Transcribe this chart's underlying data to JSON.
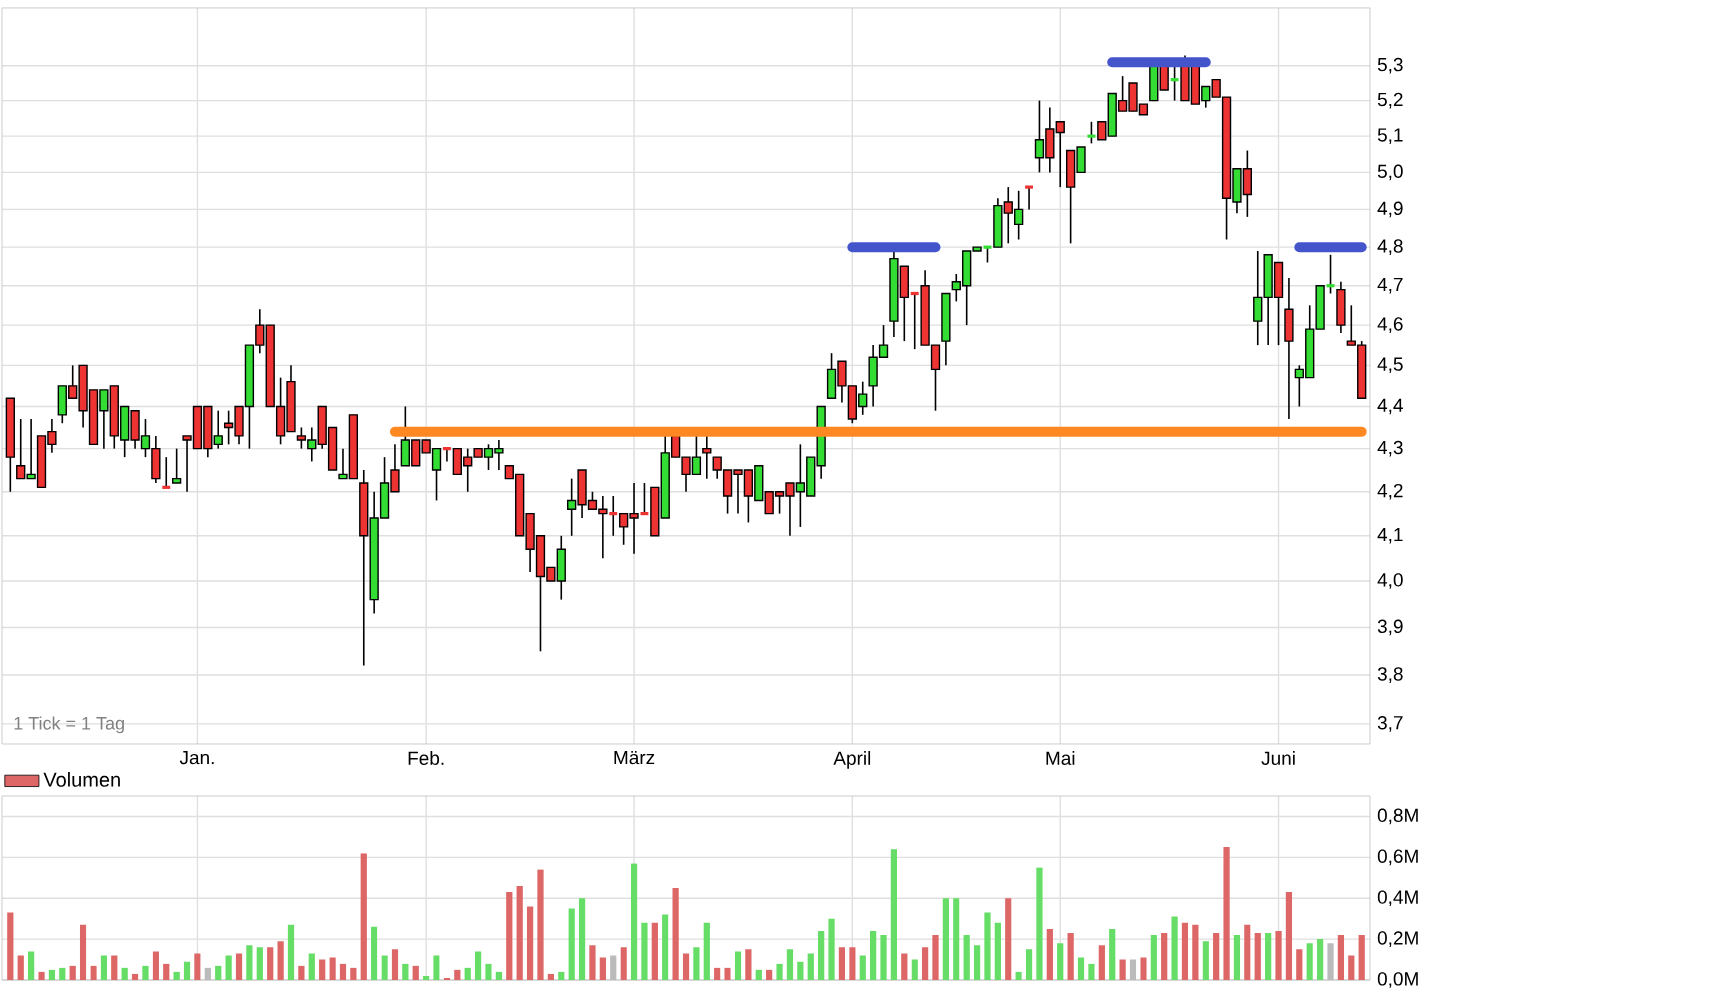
{
  "chart_data": [
    {
      "type": "candlestick",
      "categories": [
        null,
        null,
        null,
        null,
        null,
        null,
        null,
        null,
        null,
        null,
        null,
        null,
        null,
        null,
        null,
        null,
        null,
        null,
        "Jan.",
        null,
        null,
        null,
        null,
        null,
        null,
        null,
        null,
        null,
        null,
        null,
        null,
        null,
        null,
        null,
        null,
        null,
        null,
        null,
        null,
        null,
        "Feb.",
        null,
        null,
        null,
        null,
        null,
        null,
        null,
        null,
        null,
        null,
        null,
        null,
        null,
        null,
        null,
        null,
        null,
        null,
        null,
        "März",
        null,
        null,
        null,
        null,
        null,
        null,
        null,
        null,
        null,
        null,
        null,
        null,
        null,
        null,
        null,
        null,
        null,
        null,
        null,
        null,
        "April",
        null,
        null,
        null,
        null,
        null,
        null,
        null,
        null,
        null,
        null,
        null,
        null,
        null,
        null,
        null,
        null,
        null,
        null,
        null,
        "Mai",
        null,
        null,
        null,
        null,
        null,
        null,
        null,
        null,
        null,
        null,
        null,
        null,
        null,
        null,
        null,
        null,
        null,
        null,
        null,
        null,
        "Juni",
        null,
        null,
        null,
        null,
        null,
        null,
        null,
        null
      ],
      "ohlc": [
        [
          4.42,
          4.42,
          4.2,
          4.28
        ],
        [
          4.26,
          4.37,
          4.23,
          4.23
        ],
        [
          4.23,
          4.37,
          4.23,
          4.24
        ],
        [
          4.33,
          4.33,
          4.21,
          4.21
        ],
        [
          4.34,
          4.37,
          4.29,
          4.31
        ],
        [
          4.38,
          4.45,
          4.36,
          4.45
        ],
        [
          4.45,
          4.5,
          4.42,
          4.42
        ],
        [
          4.5,
          4.5,
          4.35,
          4.39
        ],
        [
          4.44,
          4.44,
          4.31,
          4.31
        ],
        [
          4.39,
          4.44,
          4.3,
          4.44
        ],
        [
          4.45,
          4.45,
          4.3,
          4.33
        ],
        [
          4.32,
          4.4,
          4.28,
          4.4
        ],
        [
          4.39,
          4.39,
          4.3,
          4.32
        ],
        [
          4.3,
          4.37,
          4.28,
          4.33
        ],
        [
          4.3,
          4.33,
          4.22,
          4.23
        ],
        [
          4.21,
          4.28,
          4.21,
          4.21
        ],
        [
          4.22,
          4.3,
          4.22,
          4.23
        ],
        [
          4.33,
          4.33,
          4.2,
          4.32
        ],
        [
          4.4,
          4.4,
          4.3,
          4.3
        ],
        [
          4.4,
          4.4,
          4.28,
          4.3
        ],
        [
          4.31,
          4.39,
          4.3,
          4.33
        ],
        [
          4.36,
          4.39,
          4.31,
          4.35
        ],
        [
          4.4,
          4.4,
          4.31,
          4.33
        ],
        [
          4.4,
          4.55,
          4.3,
          4.55
        ],
        [
          4.6,
          4.64,
          4.53,
          4.55
        ],
        [
          4.6,
          4.6,
          4.4,
          4.4
        ],
        [
          4.4,
          4.47,
          4.31,
          4.33
        ],
        [
          4.46,
          4.5,
          4.34,
          4.34
        ],
        [
          4.33,
          4.35,
          4.3,
          4.32
        ],
        [
          4.3,
          4.35,
          4.27,
          4.32
        ],
        [
          4.4,
          4.4,
          4.3,
          4.31
        ],
        [
          4.35,
          4.35,
          4.25,
          4.25
        ],
        [
          4.23,
          4.3,
          4.23,
          4.24
        ],
        [
          4.38,
          4.38,
          4.23,
          4.23
        ],
        [
          4.22,
          4.25,
          3.82,
          4.1
        ],
        [
          3.96,
          4.2,
          3.93,
          4.14
        ],
        [
          4.14,
          4.28,
          4.14,
          4.22
        ],
        [
          4.25,
          4.31,
          4.2,
          4.2
        ],
        [
          4.26,
          4.4,
          4.26,
          4.32
        ],
        [
          4.32,
          4.32,
          4.26,
          4.26
        ],
        [
          4.32,
          4.32,
          4.29,
          4.29
        ],
        [
          4.25,
          4.3,
          4.18,
          4.3
        ],
        [
          4.3,
          4.3,
          4.27,
          4.3
        ],
        [
          4.3,
          4.3,
          4.24,
          4.24
        ],
        [
          4.28,
          4.3,
          4.2,
          4.26
        ],
        [
          4.3,
          4.3,
          4.28,
          4.28
        ],
        [
          4.28,
          4.31,
          4.25,
          4.3
        ],
        [
          4.29,
          4.32,
          4.25,
          4.3
        ],
        [
          4.26,
          4.26,
          4.23,
          4.23
        ],
        [
          4.24,
          4.24,
          4.1,
          4.1
        ],
        [
          4.15,
          4.15,
          4.02,
          4.07
        ],
        [
          4.1,
          4.1,
          3.85,
          4.01
        ],
        [
          4.03,
          4.03,
          4.0,
          4.0
        ],
        [
          4.0,
          4.1,
          3.96,
          4.07
        ],
        [
          4.16,
          4.23,
          4.1,
          4.18
        ],
        [
          4.25,
          4.25,
          4.14,
          4.17
        ],
        [
          4.18,
          4.2,
          4.16,
          4.16
        ],
        [
          4.16,
          4.19,
          4.05,
          4.15
        ],
        [
          4.15,
          4.19,
          4.1,
          4.15
        ],
        [
          4.15,
          4.15,
          4.08,
          4.12
        ],
        [
          4.15,
          4.22,
          4.06,
          4.14
        ],
        [
          4.15,
          4.22,
          4.15,
          4.15
        ],
        [
          4.21,
          4.21,
          4.1,
          4.1
        ],
        [
          4.14,
          4.33,
          4.14,
          4.29
        ],
        [
          4.33,
          4.33,
          4.28,
          4.28
        ],
        [
          4.28,
          4.28,
          4.2,
          4.24
        ],
        [
          4.24,
          4.33,
          4.24,
          4.28
        ],
        [
          4.3,
          4.33,
          4.23,
          4.29
        ],
        [
          4.28,
          4.28,
          4.23,
          4.25
        ],
        [
          4.25,
          4.25,
          4.15,
          4.19
        ],
        [
          4.25,
          4.25,
          4.15,
          4.24
        ],
        [
          4.25,
          4.25,
          4.13,
          4.19
        ],
        [
          4.18,
          4.26,
          4.18,
          4.26
        ],
        [
          4.2,
          4.2,
          4.15,
          4.15
        ],
        [
          4.2,
          4.2,
          4.15,
          4.19
        ],
        [
          4.22,
          4.22,
          4.1,
          4.19
        ],
        [
          4.2,
          4.31,
          4.12,
          4.22
        ],
        [
          4.19,
          4.28,
          4.19,
          4.28
        ],
        [
          4.26,
          4.4,
          4.23,
          4.4
        ],
        [
          4.42,
          4.53,
          4.42,
          4.49
        ],
        [
          4.51,
          4.51,
          4.41,
          4.45
        ],
        [
          4.45,
          4.45,
          4.36,
          4.37
        ],
        [
          4.4,
          4.46,
          4.38,
          4.43
        ],
        [
          4.45,
          4.55,
          4.4,
          4.52
        ],
        [
          4.52,
          4.6,
          4.52,
          4.55
        ],
        [
          4.61,
          4.8,
          4.57,
          4.77
        ],
        [
          4.75,
          4.75,
          4.56,
          4.67
        ],
        [
          4.68,
          4.68,
          4.54,
          4.68
        ],
        [
          4.7,
          4.74,
          4.55,
          4.55
        ],
        [
          4.55,
          4.55,
          4.39,
          4.49
        ],
        [
          4.56,
          4.68,
          4.5,
          4.68
        ],
        [
          4.69,
          4.73,
          4.66,
          4.71
        ],
        [
          4.7,
          4.79,
          4.6,
          4.79
        ],
        [
          4.79,
          4.8,
          4.79,
          4.8
        ],
        [
          4.8,
          4.8,
          4.76,
          4.8
        ],
        [
          4.8,
          4.93,
          4.8,
          4.91
        ],
        [
          4.92,
          4.96,
          4.81,
          4.89
        ],
        [
          4.86,
          4.95,
          4.82,
          4.9
        ],
        [
          4.96,
          4.96,
          4.9,
          4.96
        ],
        [
          5.04,
          5.2,
          5.0,
          5.09
        ],
        [
          5.12,
          5.18,
          5.0,
          5.04
        ],
        [
          5.14,
          5.14,
          4.96,
          5.11
        ],
        [
          5.06,
          5.06,
          4.81,
          4.96
        ],
        [
          5.0,
          5.07,
          5.0,
          5.07
        ],
        [
          5.1,
          5.14,
          5.08,
          5.1
        ],
        [
          5.14,
          5.14,
          5.09,
          5.09
        ],
        [
          5.1,
          5.22,
          5.1,
          5.22
        ],
        [
          5.2,
          5.27,
          5.17,
          5.17
        ],
        [
          5.25,
          5.25,
          5.17,
          5.17
        ],
        [
          5.19,
          5.19,
          5.16,
          5.16
        ],
        [
          5.2,
          5.3,
          5.2,
          5.3
        ],
        [
          5.3,
          5.3,
          5.23,
          5.23
        ],
        [
          5.26,
          5.3,
          5.2,
          5.26
        ],
        [
          5.3,
          5.33,
          5.2,
          5.2
        ],
        [
          5.3,
          5.3,
          5.19,
          5.19
        ],
        [
          5.2,
          5.24,
          5.18,
          5.24
        ],
        [
          5.26,
          5.26,
          5.21,
          5.21
        ],
        [
          5.21,
          5.21,
          4.82,
          4.93
        ],
        [
          4.92,
          5.01,
          4.89,
          5.01
        ],
        [
          5.01,
          5.06,
          4.88,
          4.94
        ],
        [
          4.61,
          4.79,
          4.55,
          4.67
        ],
        [
          4.67,
          4.78,
          4.55,
          4.78
        ],
        [
          4.76,
          4.76,
          4.55,
          4.67
        ],
        [
          4.64,
          4.72,
          4.37,
          4.56
        ],
        [
          4.47,
          4.5,
          4.4,
          4.49
        ],
        [
          4.47,
          4.65,
          4.47,
          4.59
        ],
        [
          4.59,
          4.7,
          4.59,
          4.7
        ],
        [
          4.7,
          4.78,
          4.68,
          4.7
        ],
        [
          4.69,
          4.71,
          4.58,
          4.6
        ],
        [
          4.56,
          4.65,
          4.55,
          4.55
        ],
        [
          4.55,
          4.56,
          4.42,
          4.42
        ]
      ],
      "colors": [
        "#ee3333",
        "#ee3333",
        "#33dd33",
        "#ee3333",
        "#ee3333",
        "#33dd33",
        "#ee3333",
        "#ee3333",
        "#ee3333",
        "#33dd33",
        "#ee3333",
        "#33dd33",
        "#ee3333",
        "#33dd33",
        "#ee3333",
        "#ee3333",
        "#33dd33",
        "#ee3333",
        "#ee3333",
        "#ee3333",
        "#33dd33",
        "#ee3333",
        "#ee3333",
        "#33dd33",
        "#ee3333",
        "#ee3333",
        "#ee3333",
        "#ee3333",
        "#ee3333",
        "#33dd33",
        "#ee3333",
        "#ee3333",
        "#33dd33",
        "#ee3333",
        "#ee3333",
        "#33dd33",
        "#33dd33",
        "#ee3333",
        "#33dd33",
        "#ee3333",
        "#ee3333",
        "#33dd33",
        "#ee3333",
        "#ee3333",
        "#ee3333",
        "#ee3333",
        "#33dd33",
        "#33dd33",
        "#ee3333",
        "#ee3333",
        "#ee3333",
        "#ee3333",
        "#ee3333",
        "#33dd33",
        "#33dd33",
        "#ee3333",
        "#ee3333",
        "#ee3333",
        "#ee3333",
        "#ee3333",
        "#ee3333",
        "#ee3333",
        "#ee3333",
        "#33dd33",
        "#ee3333",
        "#ee3333",
        "#33dd33",
        "#ee3333",
        "#ee3333",
        "#ee3333",
        "#ee3333",
        "#ee3333",
        "#33dd33",
        "#ee3333",
        "#ee3333",
        "#ee3333",
        "#33dd33",
        "#33dd33",
        "#33dd33",
        "#33dd33",
        "#ee3333",
        "#ee3333",
        "#33dd33",
        "#33dd33",
        "#33dd33",
        "#33dd33",
        "#ee3333",
        "#ee3333",
        "#ee3333",
        "#ee3333",
        "#33dd33",
        "#33dd33",
        "#33dd33",
        "#33dd33",
        "#33dd33",
        "#33dd33",
        "#ee3333",
        "#33dd33",
        "#ee3333",
        "#33dd33",
        "#ee3333",
        "#ee3333",
        "#ee3333",
        "#33dd33",
        "#33dd33",
        "#ee3333",
        "#33dd33",
        "#ee3333",
        "#ee3333",
        "#ee3333",
        "#33dd33",
        "#ee3333",
        "#33dd33",
        "#ee3333",
        "#ee3333",
        "#33dd33",
        "#ee3333",
        "#ee3333",
        "#33dd33",
        "#ee3333",
        "#33dd33",
        "#33dd33",
        "#ee3333",
        "#ee3333",
        "#33dd33",
        "#33dd33",
        "#33dd33",
        "#33dd33",
        "#ee3333",
        "#ee3333",
        "#ee3333"
      ],
      "series": [
        {
          "type": "line",
          "color": "#4455cc",
          "values": [
            null,
            null,
            null,
            null,
            null,
            null,
            null,
            null,
            null,
            null,
            null,
            null,
            null,
            null,
            null,
            null,
            null,
            null,
            null,
            null,
            null,
            null,
            null,
            null,
            null,
            null,
            null,
            null,
            null,
            null,
            null,
            null,
            null,
            null,
            null,
            null,
            null,
            null,
            null,
            null,
            null,
            null,
            null,
            null,
            null,
            null,
            null,
            null,
            null,
            null,
            null,
            null,
            null,
            null,
            null,
            null,
            null,
            null,
            null,
            null,
            null,
            null,
            null,
            null,
            null,
            null,
            null,
            null,
            null,
            null,
            null,
            null,
            null,
            null,
            null,
            null,
            null,
            null,
            null,
            null,
            null,
            4.8,
            4.8,
            4.8,
            4.8,
            4.8,
            4.8,
            4.8,
            4.8,
            4.8,
            null,
            null,
            null,
            null,
            null,
            null,
            null,
            null,
            null,
            null,
            null,
            null,
            null,
            null,
            null,
            null,
            5.31,
            5.31,
            5.31,
            5.31,
            5.31,
            5.31,
            5.31,
            5.31,
            5.31,
            5.31,
            null,
            null,
            null,
            null,
            null,
            null,
            null,
            null,
            4.8,
            4.8,
            4.8,
            4.8,
            4.8,
            4.8,
            4.8
          ]
        },
        {
          "type": "line",
          "color": "#ff8822",
          "values": [
            null,
            null,
            null,
            null,
            null,
            null,
            null,
            null,
            null,
            null,
            null,
            null,
            null,
            null,
            null,
            null,
            null,
            null,
            null,
            null,
            null,
            null,
            null,
            null,
            null,
            null,
            null,
            null,
            null,
            null,
            null,
            null,
            null,
            null,
            null,
            null,
            null,
            4.34,
            4.34,
            4.34,
            4.34,
            4.34,
            4.34,
            4.34,
            4.34,
            4.34,
            4.34,
            4.34,
            4.34,
            4.34,
            4.34,
            4.34,
            4.34,
            4.34,
            4.34,
            4.34,
            4.34,
            4.34,
            4.34,
            4.34,
            4.34,
            4.34,
            4.34,
            4.34,
            4.34,
            4.34,
            4.34,
            4.34,
            4.34,
            4.34,
            4.34,
            4.34,
            4.34,
            4.34,
            4.34,
            4.34,
            4.34,
            4.34,
            4.34,
            4.34,
            4.34,
            4.34,
            4.34,
            4.34,
            4.34,
            4.34,
            4.34,
            4.34,
            4.34,
            4.34,
            4.34,
            4.34,
            4.34,
            4.34,
            4.34,
            4.34,
            4.34,
            4.34,
            4.34,
            4.34,
            4.34,
            4.34,
            4.34,
            4.34,
            4.34,
            4.34,
            4.34,
            4.34,
            4.34,
            4.34,
            4.34,
            4.34,
            4.34,
            4.34,
            4.34,
            4.34,
            4.34,
            4.34,
            4.34,
            4.34,
            4.34,
            4.34,
            4.34,
            4.34,
            4.34,
            4.34,
            4.34,
            4.34,
            4.34,
            4.34,
            4.34
          ]
        }
      ],
      "log": true,
      "ylim": [
        3.66,
        5.47
      ],
      "yticks": [
        {
          "value": 3.7,
          "label": "3,7"
        },
        {
          "value": 3.8,
          "label": "3,8"
        },
        {
          "value": 3.9,
          "label": "3,9"
        },
        {
          "value": 4.0,
          "label": "4,0"
        },
        {
          "value": 4.1,
          "label": "4,1"
        },
        {
          "value": 4.2,
          "label": "4,2"
        },
        {
          "value": 4.3,
          "label": "4,3"
        },
        {
          "value": 4.4,
          "label": "4,4"
        },
        {
          "value": 4.5,
          "label": "4,5"
        },
        {
          "value": 4.6,
          "label": "4,6"
        },
        {
          "value": 4.7,
          "label": "4,7"
        },
        {
          "value": 4.8,
          "label": "4,8"
        },
        {
          "value": 4.9,
          "label": "4,9"
        },
        {
          "value": 5.0,
          "label": "5,0"
        },
        {
          "value": 5.1,
          "label": "5,1"
        },
        {
          "value": 5.2,
          "label": "5,2"
        },
        {
          "value": 5.3,
          "label": "5,3"
        }
      ],
      "grid": true,
      "annotations": [
        "1 Tick = 1 Tag"
      ]
    },
    {
      "type": "bar",
      "categories": [
        null,
        null,
        null,
        null,
        null,
        null,
        null,
        null,
        null,
        null,
        null,
        null,
        null,
        null,
        null,
        null,
        null,
        null,
        null,
        null,
        null,
        null,
        null,
        null,
        null,
        null,
        null,
        null,
        null,
        null,
        null,
        null,
        null,
        null,
        null,
        null,
        null,
        null,
        null,
        null,
        null,
        null,
        null,
        null,
        null,
        null,
        null,
        null,
        null,
        null,
        null,
        null,
        null,
        null,
        null,
        null,
        null,
        null,
        null,
        null,
        null,
        null,
        null,
        null,
        null,
        null,
        null,
        null,
        null,
        null,
        null,
        null,
        null,
        null,
        null,
        null,
        null,
        null,
        null,
        null,
        null,
        null,
        null,
        null,
        null,
        null,
        null,
        null,
        null,
        null,
        null,
        null,
        null,
        null,
        null,
        null,
        null,
        null,
        null,
        null,
        null,
        null,
        null,
        null,
        null,
        null,
        null,
        null,
        null,
        null,
        null,
        null,
        null,
        null,
        null,
        null,
        null,
        null,
        null,
        null,
        null,
        null,
        null,
        null,
        null,
        null,
        null,
        null,
        null,
        null,
        null
      ],
      "series": [
        {
          "name": "Volumen",
          "color": "#dd6666",
          "colors": [
            "#dd6666",
            "#dd6666",
            "#66dd66",
            "#dd6666",
            "#66dd66",
            "#66dd66",
            "#dd6666",
            "#dd6666",
            "#dd6666",
            "#66dd66",
            "#dd6666",
            "#66dd66",
            "#dd6666",
            "#66dd66",
            "#dd6666",
            "#dd6666",
            "#66dd66",
            "#66dd66",
            "#dd6666",
            "#bbbbbb",
            "#66dd66",
            "#66dd66",
            "#dd6666",
            "#66dd66",
            "#66dd66",
            "#dd6666",
            "#dd6666",
            "#66dd66",
            "#dd6666",
            "#66dd66",
            "#dd6666",
            "#dd6666",
            "#dd6666",
            "#dd6666",
            "#dd6666",
            "#66dd66",
            "#66dd66",
            "#dd6666",
            "#66dd66",
            "#dd6666",
            "#66dd66",
            "#66dd66",
            "#dd6666",
            "#dd6666",
            "#66dd66",
            "#66dd66",
            "#66dd66",
            "#66dd66",
            "#dd6666",
            "#dd6666",
            "#dd6666",
            "#dd6666",
            "#dd6666",
            "#66dd66",
            "#66dd66",
            "#66dd66",
            "#dd6666",
            "#dd6666",
            "#bbbbbb",
            "#dd6666",
            "#66dd66",
            "#66dd66",
            "#dd6666",
            "#66dd66",
            "#dd6666",
            "#dd6666",
            "#66dd66",
            "#66dd66",
            "#dd6666",
            "#dd6666",
            "#66dd66",
            "#dd6666",
            "#66dd66",
            "#dd6666",
            "#66dd66",
            "#66dd66",
            "#66dd66",
            "#66dd66",
            "#66dd66",
            "#66dd66",
            "#dd6666",
            "#dd6666",
            "#66dd66",
            "#66dd66",
            "#66dd66",
            "#66dd66",
            "#dd6666",
            "#66dd66",
            "#dd6666",
            "#dd6666",
            "#66dd66",
            "#66dd66",
            "#66dd66",
            "#66dd66",
            "#66dd66",
            "#66dd66",
            "#dd6666",
            "#66dd66",
            "#66dd66",
            "#66dd66",
            "#dd6666",
            "#66dd66",
            "#dd6666",
            "#66dd66",
            "#66dd66",
            "#dd6666",
            "#66dd66",
            "#dd6666",
            "#bbbbbb",
            "#dd6666",
            "#66dd66",
            "#dd6666",
            "#66dd66",
            "#dd6666",
            "#dd6666",
            "#66dd66",
            "#dd6666",
            "#dd6666",
            "#66dd66",
            "#dd6666",
            "#dd6666",
            "#66dd66",
            "#dd6666",
            "#dd6666",
            "#dd6666",
            "#66dd66",
            "#66dd66",
            "#bbbbbb",
            "#dd6666",
            "#dd6666",
            "#dd6666"
          ],
          "values": [
            0.33,
            0.12,
            0.14,
            0.04,
            0.05,
            0.06,
            0.07,
            0.27,
            0.07,
            0.12,
            0.12,
            0.06,
            0.03,
            0.07,
            0.14,
            0.08,
            0.04,
            0.09,
            0.13,
            0.06,
            0.07,
            0.12,
            0.13,
            0.17,
            0.16,
            0.16,
            0.19,
            0.27,
            0.07,
            0.13,
            0.1,
            0.11,
            0.08,
            0.06,
            0.62,
            0.26,
            0.12,
            0.15,
            0.08,
            0.07,
            0.02,
            0.12,
            0.01,
            0.05,
            0.06,
            0.14,
            0.08,
            0.04,
            0.43,
            0.46,
            0.36,
            0.54,
            0.03,
            0.04,
            0.35,
            0.4,
            0.17,
            0.11,
            0.12,
            0.16,
            0.57,
            0.28,
            0.28,
            0.32,
            0.45,
            0.13,
            0.16,
            0.28,
            0.06,
            0.06,
            0.14,
            0.15,
            0.05,
            0.05,
            0.08,
            0.15,
            0.09,
            0.13,
            0.24,
            0.3,
            0.16,
            0.16,
            0.12,
            0.24,
            0.22,
            0.64,
            0.13,
            0.1,
            0.16,
            0.22,
            0.4,
            0.4,
            0.22,
            0.17,
            0.33,
            0.28,
            0.4,
            0.04,
            0.15,
            0.55,
            0.25,
            0.18,
            0.23,
            0.11,
            0.08,
            0.17,
            0.25,
            0.1,
            0.1,
            0.11,
            0.22,
            0.23,
            0.31,
            0.28,
            0.27,
            0.19,
            0.23,
            0.65,
            0.22,
            0.27,
            0.23,
            0.23,
            0.24,
            0.43,
            0.15,
            0.18,
            0.2,
            0.18,
            0.22,
            0.12,
            0.22
          ]
        }
      ],
      "ylim": [
        0,
        0.9
      ],
      "yticks": [
        {
          "value": 0,
          "label": "0,0M"
        },
        {
          "value": 0.2,
          "label": "0,2M"
        },
        {
          "value": 0.4,
          "label": "0,4M"
        },
        {
          "value": 0.6,
          "label": "0,6M"
        },
        {
          "value": 0.8,
          "label": "0,8M"
        }
      ],
      "grid": true,
      "legend": "top left",
      "tick_labels": "y"
    }
  ]
}
